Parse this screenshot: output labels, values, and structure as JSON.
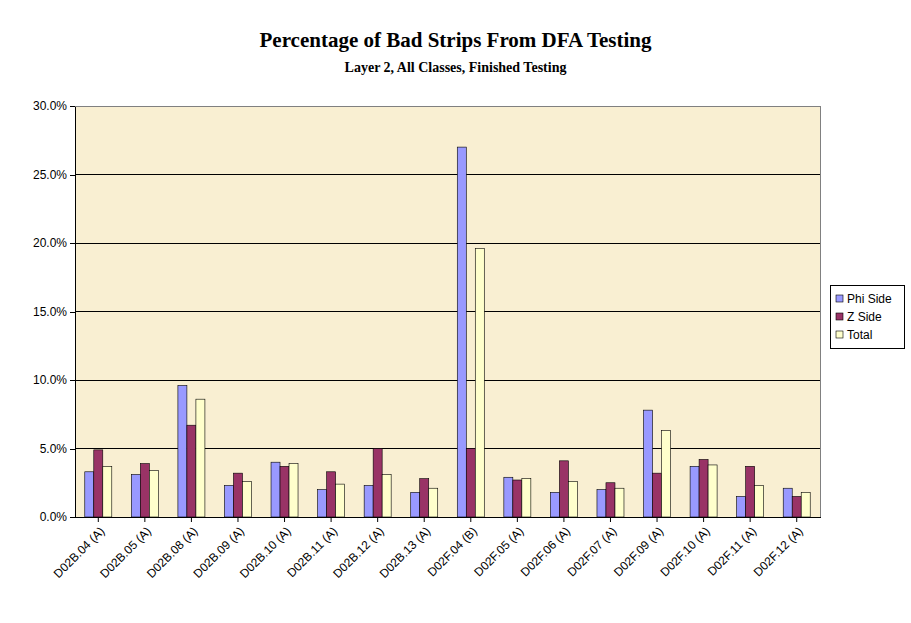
{
  "chart_data": {
    "type": "bar",
    "title": "Percentage of Bad Strips From DFA Testing",
    "subtitle": "Layer 2, All Classes, Finished Testing",
    "categories": [
      "D02B.04 (A)",
      "D02B.05 (A)",
      "D02B.08 (A)",
      "D02B.09 (A)",
      "D02B.10 (A)",
      "D02B.11 (A)",
      "D02B.12 (A)",
      "D02B.13 (A)",
      "D02F.04 (B)",
      "D02F.05 (A)",
      "D02F.06 (A)",
      "D02F.07 (A)",
      "D02F.09 (A)",
      "D02F.10 (A)",
      "D02F.11 (A)",
      "D02F.12 (A)"
    ],
    "series": [
      {
        "name": "Phi Side",
        "color": "#9999ff",
        "values": [
          3.3,
          3.1,
          9.6,
          2.3,
          4.0,
          2.0,
          2.3,
          1.8,
          27.0,
          2.9,
          1.8,
          2.0,
          7.8,
          3.7,
          1.5,
          2.1
        ]
      },
      {
        "name": "Z Side",
        "color": "#993366",
        "values": [
          4.9,
          3.9,
          6.7,
          3.2,
          3.7,
          3.3,
          5.0,
          2.8,
          5.0,
          2.7,
          4.1,
          2.5,
          3.2,
          4.2,
          3.7,
          1.5
        ]
      },
      {
        "name": "Total",
        "color": "#ffffcc",
        "values": [
          3.7,
          3.4,
          8.6,
          2.6,
          3.9,
          2.4,
          3.1,
          2.1,
          19.6,
          2.8,
          2.6,
          2.1,
          6.3,
          3.8,
          2.3,
          1.8
        ]
      }
    ],
    "ylim": [
      0,
      30
    ],
    "yticks": [
      {
        "value": 0,
        "label": "0.0%"
      },
      {
        "value": 5,
        "label": "5.0%"
      },
      {
        "value": 10,
        "label": "10.0%"
      },
      {
        "value": 15,
        "label": "15.0%"
      },
      {
        "value": 20,
        "label": "20.0%"
      },
      {
        "value": 25,
        "label": "25.0%"
      },
      {
        "value": 30,
        "label": "30.0%"
      }
    ],
    "grid": true,
    "legend": "right"
  }
}
